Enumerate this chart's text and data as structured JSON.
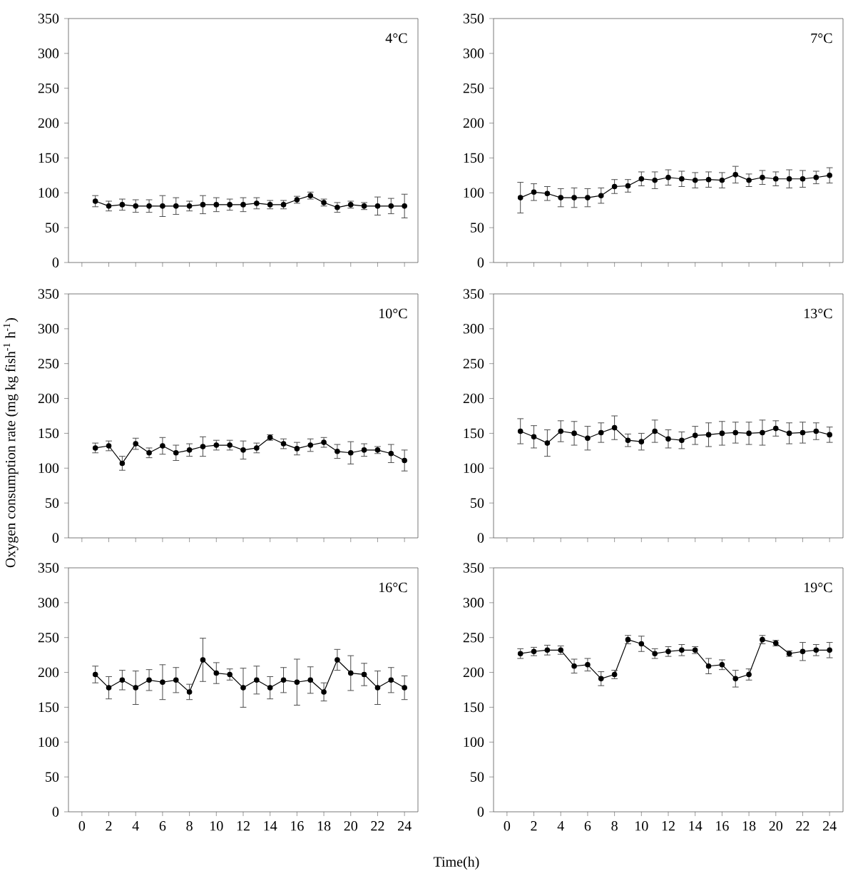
{
  "chart_data": [
    {
      "type": "line",
      "color": "#000000",
      "marker": "circle",
      "annotations": [
        "4°C"
      ],
      "tick_labels": "y",
      "xlim": [
        -1,
        25
      ],
      "ylim": [
        0,
        350
      ],
      "xticks": [
        0,
        2,
        4,
        6,
        8,
        10,
        12,
        14,
        16,
        18,
        20,
        22,
        24
      ],
      "yticks": [
        0,
        50,
        100,
        150,
        200,
        250,
        300,
        350
      ],
      "x": [
        1,
        2,
        3,
        4,
        5,
        6,
        7,
        8,
        9,
        10,
        11,
        12,
        13,
        14,
        15,
        16,
        17,
        18,
        19,
        20,
        21,
        22,
        23,
        24
      ],
      "values": [
        88,
        81,
        83,
        81,
        81,
        81,
        81,
        81,
        83,
        83,
        83,
        83,
        85,
        83,
        83,
        90,
        96,
        86,
        79,
        83,
        81,
        81,
        81,
        81
      ],
      "errors": [
        8,
        7,
        8,
        9,
        9,
        15,
        12,
        7,
        13,
        10,
        8,
        10,
        8,
        6,
        6,
        5,
        5,
        5,
        7,
        5,
        5,
        13,
        11,
        17
      ]
    },
    {
      "type": "line",
      "color": "#000000",
      "marker": "circle",
      "annotations": [
        "7°C"
      ],
      "tick_labels": "y",
      "xlim": [
        -1,
        25
      ],
      "ylim": [
        0,
        350
      ],
      "xticks": [
        0,
        2,
        4,
        6,
        8,
        10,
        12,
        14,
        16,
        18,
        20,
        22,
        24
      ],
      "yticks": [
        0,
        50,
        100,
        150,
        200,
        250,
        300,
        350
      ],
      "x": [
        1,
        2,
        3,
        4,
        5,
        6,
        7,
        8,
        9,
        10,
        11,
        12,
        13,
        14,
        15,
        16,
        17,
        18,
        19,
        20,
        21,
        22,
        23,
        24
      ],
      "values": [
        93,
        101,
        99,
        93,
        93,
        93,
        96,
        109,
        110,
        120,
        118,
        122,
        120,
        118,
        119,
        118,
        126,
        118,
        122,
        120,
        120,
        120,
        122,
        125
      ],
      "errors": [
        22,
        12,
        10,
        13,
        14,
        13,
        11,
        10,
        9,
        10,
        12,
        11,
        11,
        11,
        11,
        11,
        12,
        9,
        10,
        10,
        13,
        12,
        9,
        11
      ]
    },
    {
      "type": "line",
      "color": "#000000",
      "marker": "circle",
      "annotations": [
        "10°C"
      ],
      "tick_labels": "y",
      "ylabel": "Oxygen consumption rate (mg kg fish$^{-1}$ h$^{-1}$)",
      "xlim": [
        -1,
        25
      ],
      "ylim": [
        0,
        350
      ],
      "xticks": [
        0,
        2,
        4,
        6,
        8,
        10,
        12,
        14,
        16,
        18,
        20,
        22,
        24
      ],
      "yticks": [
        0,
        50,
        100,
        150,
        200,
        250,
        300,
        350
      ],
      "x": [
        1,
        2,
        3,
        4,
        5,
        6,
        7,
        8,
        9,
        10,
        11,
        12,
        13,
        14,
        15,
        16,
        17,
        18,
        19,
        20,
        21,
        22,
        23,
        24
      ],
      "values": [
        129,
        132,
        107,
        135,
        122,
        132,
        122,
        126,
        131,
        133,
        133,
        126,
        129,
        144,
        135,
        128,
        133,
        137,
        124,
        122,
        126,
        126,
        121,
        111
      ],
      "errors": [
        7,
        7,
        10,
        8,
        7,
        12,
        11,
        9,
        14,
        7,
        7,
        13,
        7,
        4,
        7,
        9,
        9,
        7,
        10,
        16,
        9,
        5,
        13,
        15
      ]
    },
    {
      "type": "line",
      "color": "#000000",
      "marker": "circle",
      "annotations": [
        "13°C"
      ],
      "tick_labels": "y",
      "xlim": [
        -1,
        25
      ],
      "ylim": [
        0,
        350
      ],
      "xticks": [
        0,
        2,
        4,
        6,
        8,
        10,
        12,
        14,
        16,
        18,
        20,
        22,
        24
      ],
      "yticks": [
        0,
        50,
        100,
        150,
        200,
        250,
        300,
        350
      ],
      "x": [
        1,
        2,
        3,
        4,
        5,
        6,
        7,
        8,
        9,
        10,
        11,
        12,
        13,
        14,
        15,
        16,
        17,
        18,
        19,
        20,
        21,
        22,
        23,
        24
      ],
      "values": [
        153,
        145,
        136,
        153,
        150,
        143,
        151,
        158,
        140,
        138,
        153,
        142,
        140,
        147,
        148,
        150,
        151,
        150,
        151,
        157,
        150,
        151,
        153,
        148
      ],
      "errors": [
        18,
        16,
        19,
        15,
        17,
        17,
        14,
        17,
        9,
        12,
        16,
        13,
        12,
        13,
        17,
        17,
        15,
        16,
        18,
        11,
        15,
        15,
        12,
        11
      ]
    },
    {
      "type": "line",
      "color": "#000000",
      "marker": "circle",
      "annotations": [
        "16°C"
      ],
      "xlabel": "Time(h)",
      "xlim": [
        -1,
        25
      ],
      "ylim": [
        0,
        350
      ],
      "xticks": [
        0,
        2,
        4,
        6,
        8,
        10,
        12,
        14,
        16,
        18,
        20,
        22,
        24
      ],
      "yticks": [
        0,
        50,
        100,
        150,
        200,
        250,
        300,
        350
      ],
      "x": [
        1,
        2,
        3,
        4,
        5,
        6,
        7,
        8,
        9,
        10,
        11,
        12,
        13,
        14,
        15,
        16,
        17,
        18,
        19,
        20,
        21,
        22,
        23,
        24
      ],
      "values": [
        197,
        178,
        189,
        178,
        189,
        186,
        189,
        172,
        218,
        199,
        197,
        178,
        189,
        178,
        189,
        186,
        189,
        172,
        218,
        199,
        197,
        178,
        189,
        178
      ],
      "errors": [
        12,
        16,
        14,
        24,
        15,
        25,
        18,
        11,
        31,
        15,
        8,
        28,
        20,
        16,
        18,
        33,
        19,
        13,
        15,
        25,
        16,
        24,
        18,
        17
      ]
    },
    {
      "type": "line",
      "color": "#000000",
      "marker": "circle",
      "annotations": [
        "19°C"
      ],
      "xlim": [
        -1,
        25
      ],
      "ylim": [
        0,
        350
      ],
      "xticks": [
        0,
        2,
        4,
        6,
        8,
        10,
        12,
        14,
        16,
        18,
        20,
        22,
        24
      ],
      "yticks": [
        0,
        50,
        100,
        150,
        200,
        250,
        300,
        350
      ],
      "x": [
        1,
        2,
        3,
        4,
        5,
        6,
        7,
        8,
        9,
        10,
        11,
        12,
        13,
        14,
        15,
        16,
        17,
        18,
        19,
        20,
        21,
        22,
        23,
        24
      ],
      "values": [
        227,
        230,
        232,
        232,
        209,
        211,
        191,
        197,
        247,
        241,
        227,
        230,
        232,
        232,
        209,
        211,
        191,
        197,
        247,
        242,
        227,
        230,
        232,
        232
      ],
      "errors": [
        7,
        6,
        7,
        6,
        10,
        9,
        10,
        6,
        6,
        11,
        7,
        7,
        8,
        5,
        11,
        7,
        12,
        8,
        6,
        4,
        4,
        13,
        8,
        11
      ]
    }
  ]
}
